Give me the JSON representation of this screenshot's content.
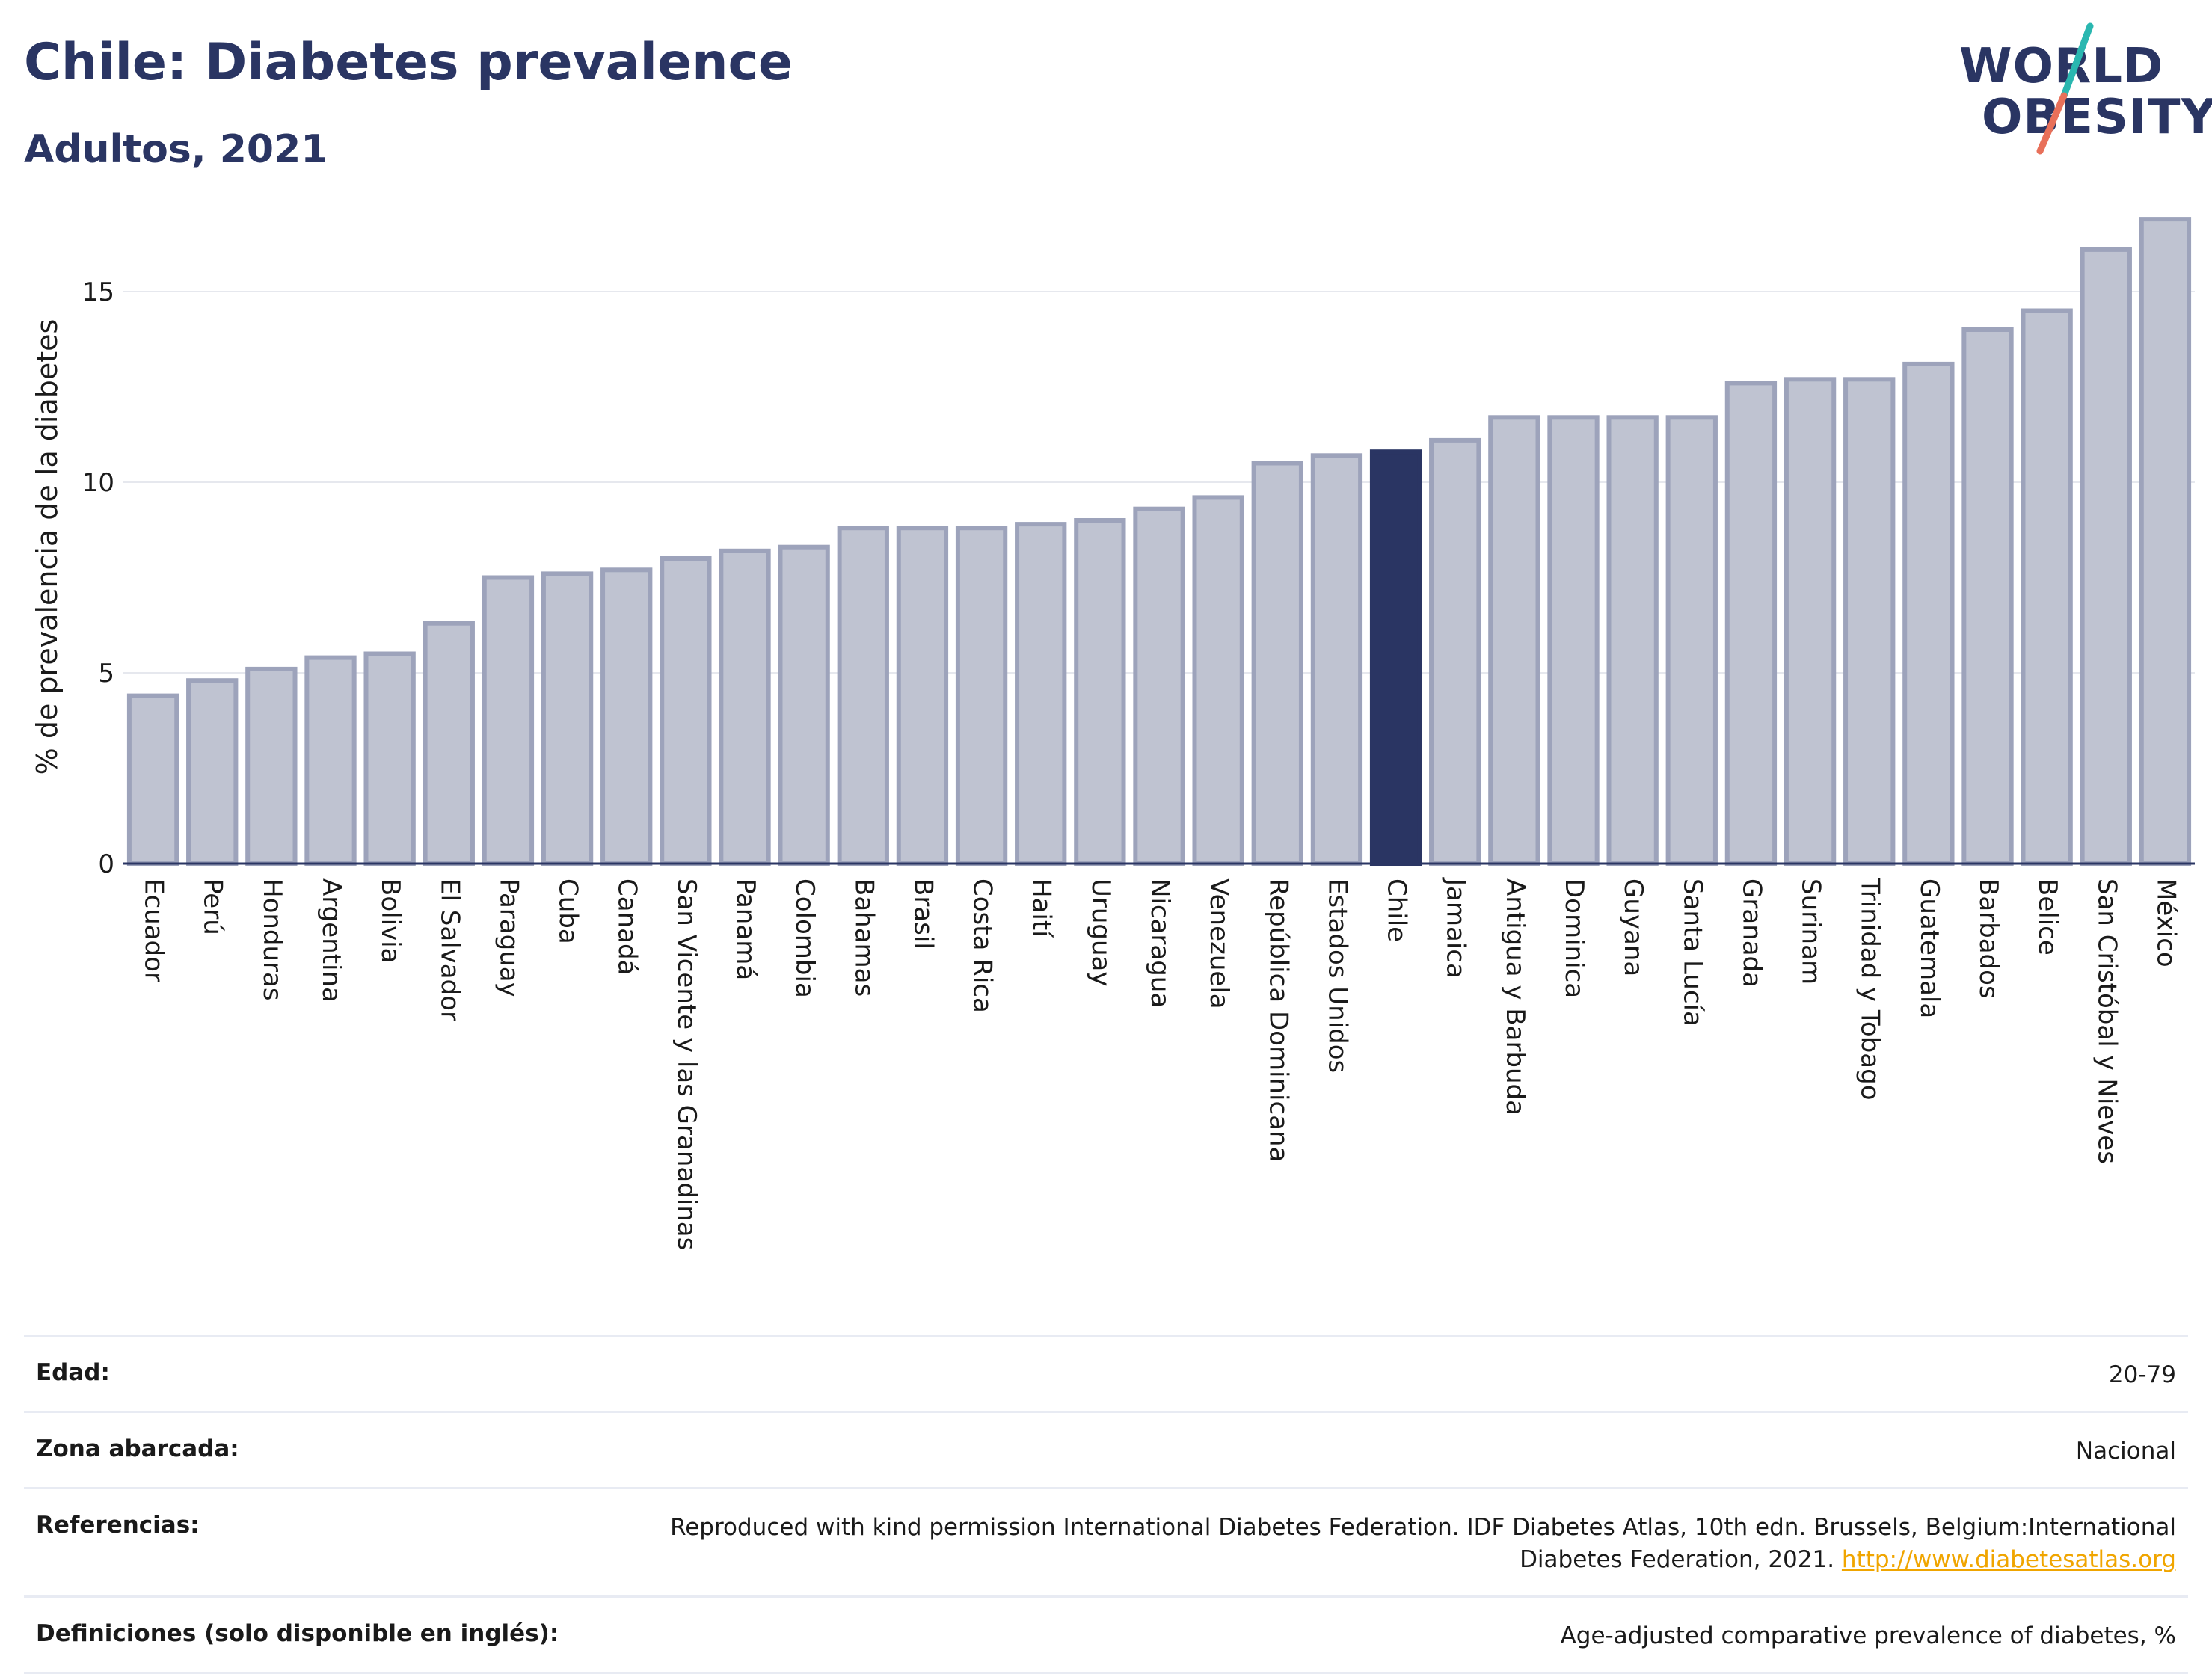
{
  "header": {
    "title": "Chile: Diabetes prevalence",
    "subtitle": "Adultos, 2021"
  },
  "logo": {
    "line1": "WORLD",
    "line2": "OBESITY",
    "accent_teal": "#2ab7b0",
    "accent_coral": "#e8705a"
  },
  "colors": {
    "bar": "#bfc3d1",
    "bar_border": "#9da3bb",
    "highlight": "#2a3563",
    "grid": "#e6e8ee",
    "axis_text": "#1a1a1a"
  },
  "chart_data": {
    "type": "bar",
    "ylabel": "% de prevalencia de la diabetes",
    "ylim": [
      0,
      17
    ],
    "yticks": [
      0,
      5,
      10,
      15
    ],
    "grid": true,
    "highlight": "Chile",
    "categories": [
      "Ecuador",
      "Perú",
      "Honduras",
      "Argentina",
      "Bolivia",
      "El Salvador",
      "Paraguay",
      "Cuba",
      "Canadá",
      "San Vicente y las Granadinas",
      "Panamá",
      "Colombia",
      "Bahamas",
      "Brasil",
      "Costa Rica",
      "Haití",
      "Uruguay",
      "Nicaragua",
      "Venezuela",
      "República Dominicana",
      "Estados Unidos",
      "Chile",
      "Jamaica",
      "Antigua y Barbuda",
      "Dominica",
      "Guyana",
      "Santa Lucía",
      "Granada",
      "Surinam",
      "Trinidad y Tobago",
      "Guatemala",
      "Barbados",
      "Belice",
      "San Cristóbal y Nieves",
      "México"
    ],
    "values": [
      4.4,
      4.8,
      5.1,
      5.4,
      5.5,
      6.3,
      7.5,
      7.6,
      7.7,
      8.0,
      8.2,
      8.3,
      8.8,
      8.8,
      8.8,
      8.9,
      9.0,
      9.3,
      9.6,
      10.5,
      10.7,
      10.8,
      11.1,
      11.7,
      11.7,
      11.7,
      11.7,
      12.6,
      12.7,
      12.7,
      13.1,
      14.0,
      14.5,
      16.1,
      16.9
    ]
  },
  "meta": [
    {
      "key": "Edad:",
      "value": "20-79"
    },
    {
      "key": "Zona abarcada:",
      "value": "Nacional"
    },
    {
      "key": "Referencias:",
      "value": "Reproduced with kind permission International Diabetes Federation.  IDF Diabetes Atlas, 10th edn. Brussels, Belgium:International Diabetes Federation, 2021.",
      "link": "http://www.diabetesatlas.org"
    },
    {
      "key": "Definiciones (solo disponible en inglés):",
      "value": "Age-adjusted comparative prevalence of diabetes, %"
    }
  ]
}
